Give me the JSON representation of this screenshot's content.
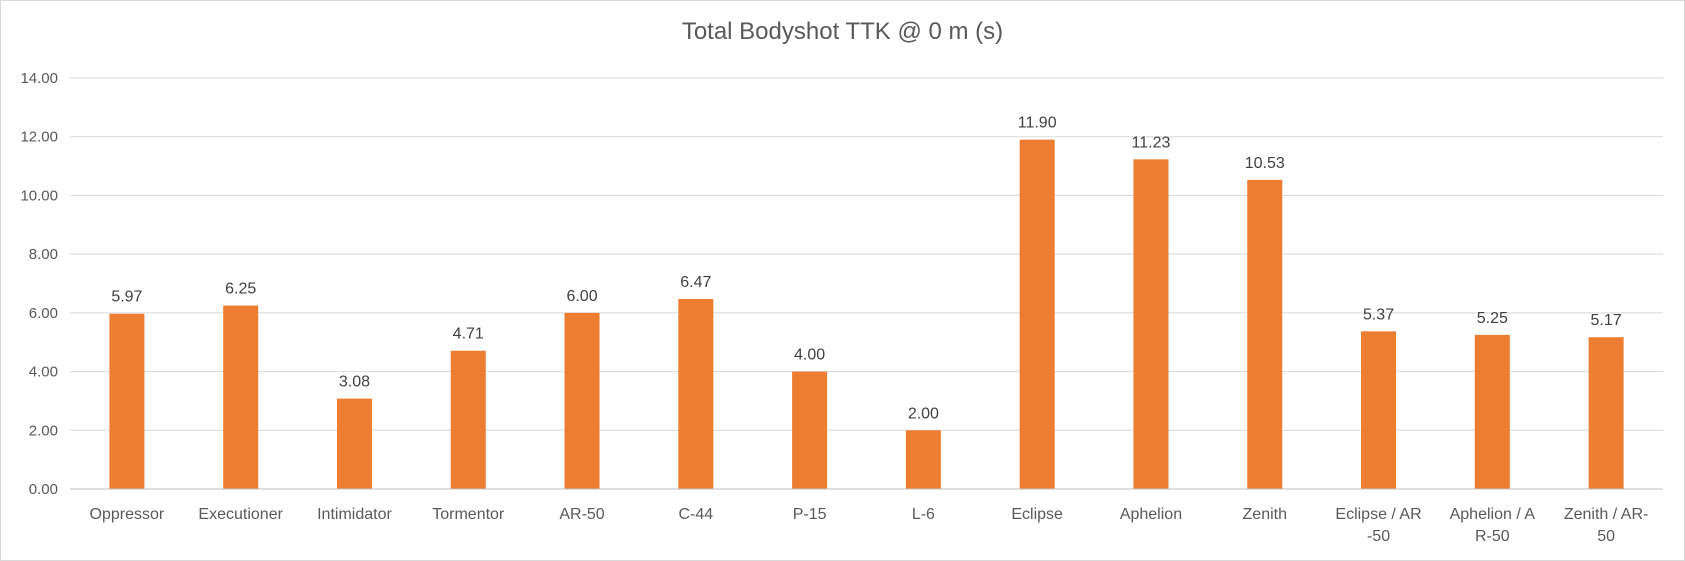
{
  "chart_data": {
    "type": "bar",
    "title": "Total Bodyshot TTK @ 0 m (s)",
    "xlabel": "",
    "ylabel": "",
    "ylim": [
      0,
      14
    ],
    "yticks": [
      "0.00",
      "2.00",
      "4.00",
      "6.00",
      "8.00",
      "10.00",
      "12.00",
      "14.00"
    ],
    "grid": true,
    "categories": [
      "Oppressor",
      "Executioner",
      "Intimidator",
      "Tormentor",
      "AR-50",
      "C-44",
      "P-15",
      "L-6",
      "Eclipse",
      "Aphelion",
      "Zenith",
      "Eclipse / AR-50",
      "Aphelion / AR-50",
      "Zenith / AR-50"
    ],
    "series": [
      {
        "values": [
          5.97,
          6.25,
          3.08,
          4.71,
          6.0,
          6.47,
          4.0,
          2.0,
          11.9,
          11.23,
          10.53,
          5.37,
          5.25,
          5.17
        ],
        "labels": [
          "5.97",
          "6.25",
          "3.08",
          "4.71",
          "6.00",
          "6.47",
          "4.00",
          "2.00",
          "11.90",
          "11.23",
          "10.53",
          "5.37",
          "5.25",
          "5.17"
        ],
        "color": "#ED7D31"
      }
    ],
    "gridColor": "#d9d9d9"
  }
}
